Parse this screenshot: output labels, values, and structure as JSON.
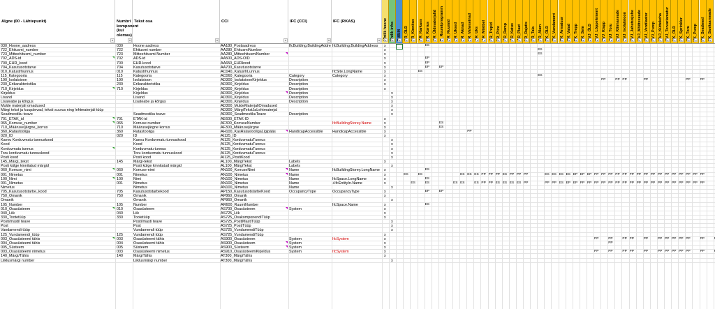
{
  "columns": [
    {
      "label": "Algne (00 - Lähtepunkt)"
    },
    {
      "label": "Numbri\nkomponent\n(kui\nolemas)"
    },
    {
      "label": "Tekst osa"
    },
    {
      "label": "CCI"
    },
    {
      "label": "IFC (CCI)"
    },
    {
      "label": "IFC (RKAS)"
    }
  ],
  "phase_columns": [
    {
      "label": "Ühtlik hoone",
      "color": "#f5df6e"
    },
    {
      "label": "Ühtlik infra",
      "color": "#76c47a"
    },
    {
      "label": "IM/BIM",
      "color": "#4a8fd0"
    },
    {
      "label": "AR_ÖLD",
      "color": "#ffc000"
    },
    {
      "label": "AR_Kinnitus",
      "color": "#ffc000"
    },
    {
      "label": "AR_Karkass",
      "color": "#ffc000"
    },
    {
      "label": "AR_Korrus",
      "color": "#ffc000"
    },
    {
      "label": "AR_Üldmaterjalid",
      "color": "#ffc000"
    },
    {
      "label": "B_Ruumiprogramm",
      "color": "#ffc000"
    },
    {
      "label": "AR_Ruumid",
      "color": "#ffc000"
    },
    {
      "label": "AR_Uksed",
      "color": "#ffc000"
    },
    {
      "label": "AR_Aknad",
      "color": "#ffc000"
    },
    {
      "label": "AR_Vaheseinad",
      "color": "#ffc000"
    },
    {
      "label": "AR_Uks",
      "color": "#ffc000"
    },
    {
      "label": "AR_Mööbel",
      "color": "#ffc000"
    },
    {
      "label": "AR_Trepid",
      "color": "#ffc000"
    },
    {
      "label": "AR_Piire",
      "color": "#ffc000"
    },
    {
      "label": "AR_Ramp",
      "color": "#ffc000"
    },
    {
      "label": "AR_Katus",
      "color": "#ffc000"
    },
    {
      "label": "AR_Plaat",
      "color": "#ffc000"
    },
    {
      "label": "AR_Rajatis",
      "color": "#ffc000"
    },
    {
      "label": "AR_Tala",
      "color": "#ffc000"
    },
    {
      "label": "AR_Alam",
      "color": "#ffc000"
    },
    {
      "label": "EK_ÖLD",
      "color": "#ffc000"
    },
    {
      "label": "EK_Vundament",
      "color": "#ffc000"
    },
    {
      "label": "EK_Armatuur",
      "color": "#ffc000"
    },
    {
      "label": "EK_Vaiad",
      "color": "#ffc000"
    },
    {
      "label": "EK_Trepp",
      "color": "#ffc000"
    },
    {
      "label": "EK_Sein",
      "color": "#ffc000"
    },
    {
      "label": "KVJ_ÖLD",
      "color": "#ffc000"
    },
    {
      "label": "KVJ_Lõppelement",
      "color": "#ffc000"
    },
    {
      "label": "KVJ_Klapp",
      "color": "#ffc000"
    },
    {
      "label": "KVJ_Toru",
      "color": "#ffc000"
    },
    {
      "label": "KVJ_Kliimaseade",
      "color": "#ffc000"
    },
    {
      "label": "KVJ_Isolatsioon",
      "color": "#ffc000"
    },
    {
      "label": "KVJ_Jahutusjuhe",
      "color": "#ffc000"
    },
    {
      "label": "KVJ_Mõõteseade",
      "color": "#ffc000"
    },
    {
      "label": "KVJ_Ventilaator",
      "color": "#ffc000"
    },
    {
      "label": "KVJ_Pump",
      "color": "#ffc000"
    },
    {
      "label": "KVJ_Küttekeha",
      "color": "#ffc000"
    },
    {
      "label": "KVJ_Tervariamatur",
      "color": "#ffc000"
    },
    {
      "label": "VK_ÖLD",
      "color": "#ffc000"
    },
    {
      "label": "VK_Sprinkler",
      "color": "#ffc000"
    },
    {
      "label": "VK_Toru",
      "color": "#ffc000"
    },
    {
      "label": "VK_Pump",
      "color": "#ffc000"
    },
    {
      "label": "VK_Seadmed",
      "color": "#ffc000"
    },
    {
      "label": "VK_Sanitaarseade",
      "color": "#ffc000"
    }
  ],
  "rows": [
    {
      "a": "030_Hoone_aadress",
      "num": "030",
      "t": "Hoone aadress",
      "cci": "AA180_Postiaadress",
      "ifc_cci": "IfcBuilding.BuildingAddress",
      "ifc_rkas": "IfcBuilding.BuildingAddress",
      "ih": "x",
      "ii": "",
      "m": {
        "2": "",
        "4": "ES"
      },
      "mark": "m"
    },
    {
      "a": "722_Ehitusmi_number",
      "num": "722",
      "t": "Ehitusmi number",
      "cci": "AA280_EhitusmiNumber",
      "ifc_cci": "",
      "ifc_rkas": "",
      "ih": "x",
      "ii": "",
      "m": {
        "20": "ES"
      }
    },
    {
      "a": "723_Mitteehitusmi_number",
      "num": "723",
      "t": "Mitteehitusmi Number",
      "cci": "AA280_MitteehitusmiNumber",
      "ifc_cci": "",
      "ifc_rkas": "",
      "ih": "x",
      "ii": "",
      "m": {
        "20": "ES"
      }
    },
    {
      "a": "702_ADS-id",
      "num": "702",
      "t": "ADS-id",
      "cci": "AA500_ADS-OID",
      "ifc_cci": "",
      "ifc_rkas": "",
      "ih": "x",
      "ii": "",
      "m": {
        "4": "EP"
      }
    },
    {
      "a": "700_EHR_kood",
      "num": "700",
      "t": "EHR-kood",
      "cci": "AA650_EHRkood",
      "ifc_cci": "",
      "ifc_rkas": "",
      "ih": "x",
      "ii": "",
      "m": {
        "4": "EP"
      }
    },
    {
      "a": "704_Kasutusotstarve",
      "num": "704",
      "t": "Kasutusotstarve",
      "cci": "AA700_Kasutusotstarve",
      "ifc_cci": "",
      "ifc_rkas": "",
      "ih": "x",
      "ii": "",
      "m": {
        "4": "EP",
        "6": "EP"
      }
    },
    {
      "a": "010_Katustrhunnus",
      "num": "010",
      "t": "Katustrhunnus",
      "cci": "AC040_KatusrhLunnus",
      "ifc_cci": "",
      "ifc_rkas": "IfcSite.LongName",
      "ih": "x",
      "ii": "",
      "m": {
        "3": "ES"
      }
    },
    {
      "a": "115_Kategooria",
      "num": "115",
      "t": "Kategooria",
      "cci": "AC060_Kategooria",
      "ifc_cci": "Category",
      "ifc_rkas": "Category",
      "ih": "x",
      "ii": "",
      "m": {
        "20": "ES"
      }
    },
    {
      "a": "190_Isolatsioon",
      "num": "190",
      "t": "Isolatsioon",
      "cci": "AD300_IsolatsioonKirjeldus",
      "ifc_cci": "Description",
      "ifc_rkas": "",
      "ih": "x",
      "ii": "",
      "m": {
        "29": "PP",
        "31": "PP",
        "32": "PP",
        "35": "PP",
        "41": "PP",
        "43": "PP"
      }
    },
    {
      "a": "230_Erikarakteristika",
      "num": "230",
      "t": "Erikarakteristika",
      "cci": "AD300_Kirjeldus",
      "ifc_cci": "Description",
      "ifc_rkas": "",
      "ih": "x",
      "ii": "",
      "m": {}
    },
    {
      "a": "710_Kirjeldus",
      "num": "710",
      "t": "Kirjeldus",
      "cci": "AD300_Kirjeldus",
      "ifc_cci": "Description",
      "ifc_rkas": "",
      "ih": "x",
      "ii": "",
      "m": {}
    },
    {
      "a": "Kirjeldus",
      "num": "",
      "t": "Kirjeldus",
      "cci": "AD300_Kirjeldus",
      "ifc_cci": "Description",
      "ifc_rkas": "",
      "ih": "",
      "ii": "x",
      "m": {}
    },
    {
      "a": "Lisand",
      "num": "",
      "t": "Lisand",
      "cci": "AD300_Kirjeldus",
      "ifc_cci": "Description",
      "ifc_rkas": "",
      "ih": "",
      "ii": "x",
      "m": {}
    },
    {
      "a": "Lisateabe ja kõrgus",
      "num": "",
      "t": "Lisateabe ja kõrgus",
      "cci": "AD300_Kirjeldus",
      "ifc_cci": "Description",
      "ifc_rkas": "",
      "ih": "",
      "ii": "x",
      "m": {}
    },
    {
      "a": "Mulde materjali omadused",
      "num": "",
      "t": "",
      "cci": "AD300_MuldeMaterjaliOmadused",
      "ifc_cci": "",
      "ifc_rkas": "",
      "ih": "",
      "ii": "x",
      "m": {}
    },
    {
      "a": "Märgi tekst ja kuupäevad, teksti suurus ning lehtmaterjali tüüp",
      "num": "",
      "t": "",
      "cci": "AD300_MärgiTekstJaLehtmaterjal",
      "ifc_cci": "",
      "ifc_rkas": "",
      "ih": "",
      "ii": "x",
      "m": {}
    },
    {
      "a": "Seadmestiku teave",
      "num": "",
      "t": "Seadmestiku teave",
      "cci": "AD300_SeadmestikuTeave",
      "ifc_cci": "Description",
      "ifc_rkas": "",
      "ih": "",
      "ii": "x",
      "m": {}
    },
    {
      "a": "701_ETAK_id",
      "num": "701",
      "t": "ETAK-id",
      "cci": "AE600_ETAK-ID",
      "ifc_cci": "",
      "ifc_rkas": "",
      "ih": "x",
      "ii": "",
      "m": {}
    },
    {
      "a": "065_Korruse_number",
      "num": "065",
      "t": "Korruse number",
      "cci": "AF300_KorruseNumber",
      "ifc_cci": "",
      "ifc_rkas": "IfcBuildingStorey.Name",
      "rkas_red": true,
      "ih": "x",
      "ii": "",
      "m": {
        "6": "ES"
      }
    },
    {
      "a": "710_Määruse/järgne_korrus",
      "num": "710",
      "t": "Määrusejärgne korrus",
      "cci": "AF300_Määrusejärgne",
      "ifc_cci": "",
      "ifc_rkas": "",
      "ih": "x",
      "ii": "",
      "m": {
        "6": "ES"
      }
    },
    {
      "a": "360_Ratastooliga",
      "num": "360",
      "t": "Ratastooliga",
      "cci": "AH100_KasRatastooligaLigipääs",
      "ifc_cci": "HandicapAccessible",
      "ifc_rkas": "HandicapAccessible",
      "ih": "x",
      "ii": "",
      "m": {
        "10": "PP"
      }
    },
    {
      "a": "020_ID",
      "num": "020",
      "t": "ID",
      "cci": "AI125_ID",
      "ifc_cci": "",
      "ifc_rkas": "",
      "ih": "x",
      "ii": "",
      "m": {}
    },
    {
      "a": "Kaevu Korduvmatu tunnuskood",
      "num": "",
      "t": "Kaevu Korduvmatu tunnuskood",
      "cci": "AI125_KorduvmatuTunnus",
      "ifc_cci": "",
      "ifc_rkas": "",
      "ih": "",
      "ii": "x",
      "m": {}
    },
    {
      "a": "Kood",
      "num": "",
      "t": "Kood",
      "cci": "AI125_KorduvmatuTunnus",
      "ifc_cci": "",
      "ifc_rkas": "",
      "ih": "",
      "ii": "x",
      "m": {}
    },
    {
      "a": "Korduvmatu tunnus",
      "num": "",
      "t": "Korduvmatu tunnus",
      "cci": "AI125_KorduvmatuTunnus",
      "ifc_cci": "",
      "ifc_rkas": "",
      "ih": "",
      "ii": "x",
      "m": {}
    },
    {
      "a": "Toru korduvmatu tunnuskood",
      "num": "",
      "t": "Toru korduvmatu tunnuskood",
      "cci": "AI125_KorduvmatuTunnus",
      "ifc_cci": "",
      "ifc_rkas": "",
      "ih": "",
      "ii": "x",
      "m": {}
    },
    {
      "a": "Posti kood",
      "num": "",
      "t": "Posti kood",
      "cci": "AI125_PostiKood",
      "ifc_cci": "",
      "ifc_rkas": "",
      "ih": "",
      "ii": "x",
      "m": {}
    },
    {
      "a": "145_Märgi_tekst",
      "num": "145",
      "t": "Märgi-tekst",
      "cci": "AL100_MärgiTekst",
      "ifc_cci": "Labels",
      "ifc_rkas": "",
      "ih": "x",
      "ii": "",
      "m": {}
    },
    {
      "a": "Posti külge kinnitatud märgid",
      "num": "",
      "t": "Posti külge kinnitatud märgid",
      "cci": "AL100_MärgiTekst",
      "ifc_cci": "Labels",
      "ifc_rkas": "",
      "ih": "",
      "ii": "x",
      "m": {}
    },
    {
      "a": "060_Korruse_nimi",
      "num": "060",
      "t": "Korruse-nimi",
      "cci": "AN100_KorruseNimi",
      "ifc_cci": "Name",
      "ifc_rkas": "IfcBuildingStorey.LongName",
      "ih": "x",
      "ii": "",
      "m": {
        "4": "ES"
      }
    },
    {
      "a": "001_Nimetus",
      "num": "001",
      "t": "Nimetus",
      "cci": "AN100_Nimetus",
      "ifc_cci": "Name",
      "ifc_rkas": "",
      "ih": "x",
      "ii": "",
      "m": {
        "1": "ES",
        "3": "ES",
        "9": "ES",
        "10": "ES",
        "11": "ES",
        "12": "PP",
        "13": "PP",
        "14": "PP",
        "15": "ES",
        "16": "PP",
        "17": "PP",
        "18": "PP",
        "21": "ES",
        "22": "ES",
        "23": "ES",
        "24": "ES",
        "25": "EP",
        "26": "EP",
        "27": "EP",
        "28": "PP",
        "29": "PP",
        "30": "PP",
        "31": "PP",
        "32": "PP",
        "33": "PP",
        "34": "PP",
        "35": "PP",
        "36": "PP",
        "37": "PP",
        "38": "PP",
        "39": "PP",
        "40": "PP",
        "41": "PP",
        "42": "PP",
        "43": "PP"
      }
    },
    {
      "a": "100_Nimi",
      "num": "100",
      "t": "Nimi",
      "cci": "AN100_Nimetus",
      "ifc_cci": "Name",
      "ifc_rkas": "IfcSpace.LongName",
      "ih": "x",
      "ii": "",
      "m": {
        "4": "ES"
      }
    },
    {
      "a": "001_Nimetus",
      "num": "001",
      "t": "Nimetus",
      "cci": "AN100_Nimetus",
      "ifc_cci": "Name",
      "ifc_rkas": "+IfcEntityIn.Name",
      "ih": "x",
      "ii": "",
      "m": {
        "2": "ES",
        "4": "ES",
        "8": "ES",
        "9": "ES",
        "11": "ES",
        "12": "PP",
        "13": "PP",
        "14": "ES",
        "15": "ES",
        "16": "ES",
        "17": "ES",
        "18": "PP",
        "21": "PP",
        "22": "PP",
        "23": "ES",
        "24": "EP",
        "25": "EP",
        "26": "PP",
        "27": "PP",
        "28": "PP",
        "29": "PP",
        "30": "PP",
        "31": "PP",
        "32": "PP",
        "33": "PP",
        "34": "PP",
        "35": "PP",
        "36": "PP",
        "37": "PP",
        "38": "PP",
        "39": "PP",
        "40": "PP",
        "41": "PP",
        "42": "PP",
        "43": "PP"
      }
    },
    {
      "a": "Nimetus",
      "num": "",
      "t": "Nimetus",
      "cci": "AN100_Nimetus",
      "ifc_cci": "Name",
      "ifc_rkas": "",
      "ih": "",
      "ii": "x",
      "m": {}
    },
    {
      "a": "705_Kasutusotstarbe_kood",
      "num": "705",
      "t": "Kasutusotstarbekood",
      "cci": "AP150_KasutusotstarbeKood",
      "ifc_cci": "OccupancyType",
      "ifc_rkas": "OccupancyType",
      "ih": "x",
      "ii": "",
      "m": {
        "4": "EP",
        "6": "EP"
      }
    },
    {
      "a": "750_Omanik",
      "num": "750",
      "t": "Omanik",
      "cci": "AP860_Omanik",
      "ifc_cci": "",
      "ifc_rkas": "",
      "ih": "x",
      "ii": "",
      "m": {}
    },
    {
      "a": "Omanik",
      "num": "",
      "t": "Omanik",
      "cci": "AP860_Omanik",
      "ifc_cci": "",
      "ifc_rkas": "",
      "ih": "",
      "ii": "x",
      "m": {}
    },
    {
      "a": "105_Number",
      "num": "105",
      "t": "Number",
      "cci": "AR600_RuumiNumber",
      "ifc_cci": "",
      "ifc_rkas": "IfcSpace.Name",
      "ih": "x",
      "ii": "",
      "m": {
        "4": "ES"
      }
    },
    {
      "a": "010_Osasüsteem",
      "num": "010",
      "t": "Osasüsteem",
      "cci": "AS700_Osasüsteem",
      "ifc_cci": "System",
      "ifc_rkas": "",
      "ih": "x",
      "ii": "",
      "m": {}
    },
    {
      "a": "040_Liik",
      "num": "040",
      "t": "Liik",
      "cci": "AS725_Liik",
      "ifc_cci": "",
      "ifc_rkas": "",
      "ih": "x",
      "ii": "",
      "m": {}
    },
    {
      "a": "330_Tootetüüp",
      "num": "330",
      "t": "Tootetüüp",
      "cci": "AS725_OsakomponendiTüüp",
      "ifc_cci": "",
      "ifc_rkas": "",
      "ih": "x",
      "ii": "",
      "m": {}
    },
    {
      "a": "Posti/mastil teave",
      "num": "",
      "t": "Posti/masti teave",
      "cci": "AS725_PostiMastiTüüp",
      "ifc_cci": "",
      "ifc_rkas": "",
      "ih": "",
      "ii": "x",
      "m": {}
    },
    {
      "a": "Post",
      "num": "",
      "t": "Post",
      "cci": "AS725_PostiTüüp",
      "ifc_cci": "",
      "ifc_rkas": "",
      "ih": "",
      "ii": "x",
      "m": {}
    },
    {
      "a": "Vandamendi tüüp",
      "num": "",
      "t": "Vundamendi tüüp",
      "cci": "AS725_VundamendiTüüp",
      "ifc_cci": "",
      "ifc_rkas": "",
      "ih": "",
      "ii": "x",
      "m": {}
    },
    {
      "a": "125_Vundamendi_tüüp",
      "num": "125",
      "t": "Vundamendi tüüp",
      "cci": "AS725_VundamendiTüüp",
      "ifc_cci": "",
      "ifc_rkas": "",
      "ih": "x",
      "ii": "",
      "m": {}
    },
    {
      "a": "003_Osasüsteemi tähis",
      "num": "003",
      "t": "Osasüsteemi tähis",
      "cci": "AS900_Osasüsteem",
      "ifc_cci": "System",
      "ifc_rkas": "IfcSystem",
      "rkas_red": true,
      "ih": "x",
      "ii": "",
      "m": {
        "28": "PP",
        "30": "PP",
        "32": "PP",
        "33": "PP",
        "35": "PP",
        "37": "PP",
        "38": "PP",
        "39": "PP",
        "40": "PP",
        "41": "PP",
        "43": "PP",
        "45": "PP"
      }
    },
    {
      "a": "004_Osasüsteemi tähis",
      "num": "004",
      "t": "Osasüsteemi tähis",
      "cci": "AS900_Osasüsteem",
      "ifc_cci": "System",
      "ifc_rkas": "",
      "ih": "x",
      "ii": "",
      "m": {
        "30": "PP"
      }
    },
    {
      "a": "005_Süsteem",
      "num": "005",
      "t": "Süsteem",
      "cci": "AS900_Süsteem",
      "ifc_cci": "System",
      "ifc_rkas": "",
      "ih": "x",
      "ii": "",
      "m": {}
    },
    {
      "a": "003_Osasüsteemi nimetus",
      "num": "003",
      "t": "Osasüsteemi nimetus",
      "cci": "AS910_OsasüsteemiKirjeldus",
      "ifc_cci": "System",
      "ifc_rkas": "IfcSystem",
      "rkas_red": true,
      "ih": "x",
      "ii": "",
      "m": {
        "28": "PP",
        "30": "PP",
        "32": "PP",
        "33": "PP",
        "35": "PP",
        "37": "PP",
        "38": "PP",
        "39": "PP",
        "40": "PP",
        "41": "PP",
        "43": "PP",
        "45": "PP"
      }
    },
    {
      "a": "140_Märgi/Tähis",
      "num": "140",
      "t": "MärgiTähis",
      "cci": "AT300_MärgiTähis",
      "ifc_cci": "",
      "ifc_rkas": "",
      "ih": "x",
      "ii": "",
      "m": {}
    },
    {
      "a": "Liiklusmärgi number",
      "num": "",
      "t": "Liiklusmärgi number",
      "cci": "AT300_MärgiTähis",
      "ifc_cci": "",
      "ifc_rkas": "",
      "ih": "",
      "ii": "x",
      "m": {}
    }
  ]
}
